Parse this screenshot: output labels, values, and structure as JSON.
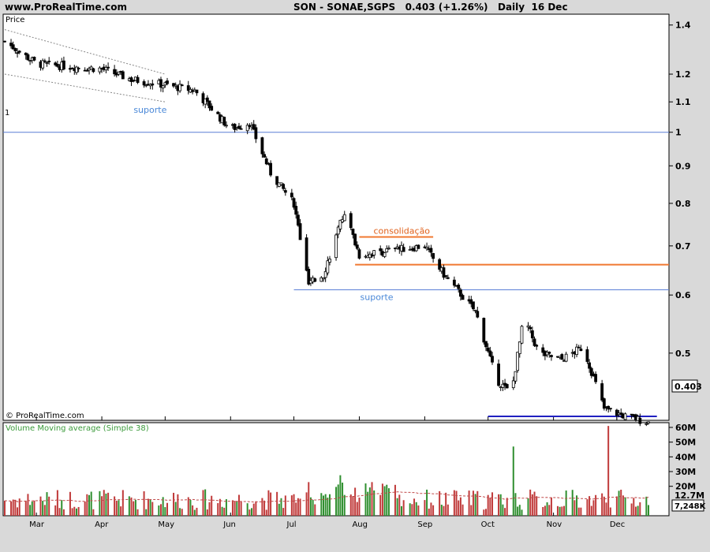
{
  "header": {
    "site": "www.ProRealTime.com",
    "ticker": "SON - SONAE,SGPS",
    "price": "0.403",
    "change": "(+1.26%)",
    "period": "Daily",
    "date": "16 Dec"
  },
  "price_panel": {
    "label": "Price",
    "ref_line_label": "1",
    "current_price_label": "0.403",
    "copyright": "© ProRealTime.com"
  },
  "volume_panel": {
    "label": "Volume Moving average (Simple 38)",
    "ma_label": "12.7M",
    "last_volume_label": "7,248K"
  },
  "colors": {
    "bull": "#2f8f2f",
    "bear": "#c03a3a",
    "ref_line": "#5a7fd6",
    "support_line": "#2020c0",
    "resistance": "#f07830",
    "annotation_blue": "#4a88d8",
    "annotation_orange": "#e0601a",
    "ma_line": "#c04a4a"
  },
  "chart_data": [
    {
      "type": "candlestick",
      "title": "SON - SONAE,SGPS",
      "y_scale": "log",
      "ylim": [
        0.41,
        1.42
      ],
      "y_ticks": [
        1.4,
        1.2,
        1.1,
        1,
        0.9,
        0.8,
        0.7,
        0.6,
        0.5
      ],
      "x_ticks": [
        "Mar",
        "Apr",
        "May",
        "Jun",
        "Jul",
        "Aug",
        "Sep",
        "Oct",
        "Nov",
        "Dec"
      ],
      "last_price": 0.403,
      "path_close": [
        [
          "Feb 15",
          1.33
        ],
        [
          "Mar 1",
          1.24
        ],
        [
          "Mar 15",
          1.23
        ],
        [
          "Apr 1",
          1.22
        ],
        [
          "Apr 15",
          1.18
        ],
        [
          "May 1",
          1.16
        ],
        [
          "May 15",
          1.14
        ],
        [
          "Jun 1",
          1.01
        ],
        [
          "Jun 10",
          1.03
        ],
        [
          "Jun 20",
          0.88
        ],
        [
          "Jul 1",
          0.8
        ],
        [
          "Jul 8",
          0.62
        ],
        [
          "Jul 15",
          0.64
        ],
        [
          "Jul 25",
          0.78
        ],
        [
          "Aug 1",
          0.68
        ],
        [
          "Aug 15",
          0.69
        ],
        [
          "Sep 1",
          0.7
        ],
        [
          "Sep 10",
          0.64
        ],
        [
          "Sep 25",
          0.57
        ],
        [
          "Oct 5",
          0.46
        ],
        [
          "Oct 12",
          0.44
        ],
        [
          "Oct 18",
          0.56
        ],
        [
          "Oct 25",
          0.5
        ],
        [
          "Nov 5",
          0.49
        ],
        [
          "Nov 15",
          0.51
        ],
        [
          "Nov 25",
          0.42
        ],
        [
          "Dec 5",
          0.41
        ],
        [
          "Dec 16",
          0.403
        ]
      ],
      "annotations": [
        {
          "text": "suporte",
          "type": "channel",
          "from": [
            "Feb 15",
            1.38,
            1.2
          ],
          "to": [
            "May 1",
            1.2,
            1.1
          ]
        },
        {
          "text": "",
          "type": "hline",
          "y": 1.0
        },
        {
          "text": "suporte",
          "type": "hline",
          "y": 0.61,
          "from": "Jul 1",
          "to": "Dec 16"
        },
        {
          "text": "consolidação",
          "type": "hline",
          "y": 0.72,
          "from": "Aug 1",
          "to": "Sep 5"
        },
        {
          "text": "",
          "type": "hline",
          "y": 0.66,
          "from": "Jul 30",
          "to": "Dec 16"
        },
        {
          "text": "",
          "type": "hline",
          "y": 0.41,
          "from": "Oct 1",
          "to": "Dec 20"
        }
      ]
    },
    {
      "type": "bar",
      "title": "Volume Moving average (Simple 38)",
      "y_ticks": [
        "60M",
        "50M",
        "40M",
        "30M",
        "20M"
      ],
      "ylim": [
        0,
        60
      ],
      "unit": "M",
      "moving_average_last": 12.7,
      "last_volume": 7.248,
      "peaks": [
        [
          "Oct 13",
          47
        ],
        [
          "Nov 27",
          61
        ]
      ]
    }
  ]
}
